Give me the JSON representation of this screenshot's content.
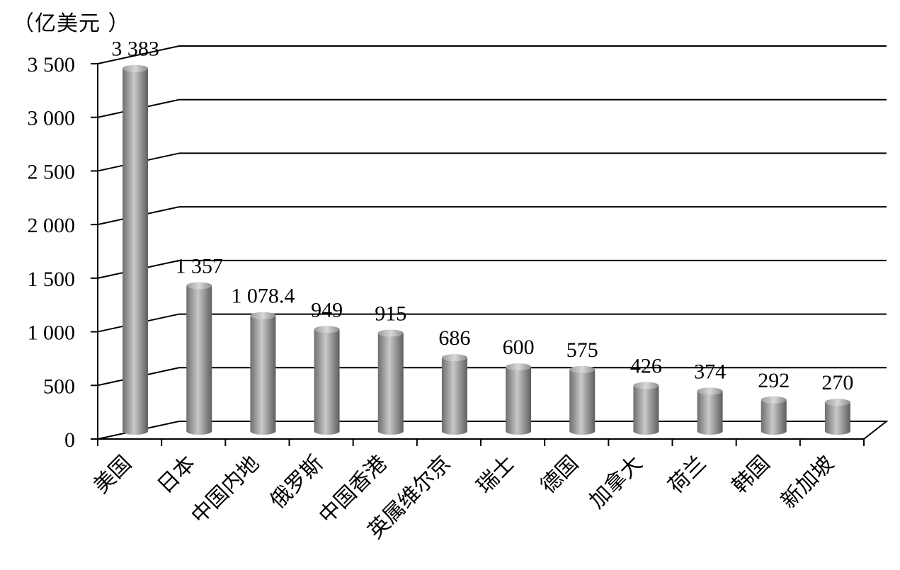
{
  "chart_data": {
    "type": "bar",
    "unit_label": "（亿美元 ）",
    "categories": [
      "美国",
      "日本",
      "中国内地",
      "俄罗斯",
      "中国香港",
      "英属维尔京",
      "瑞士",
      "德国",
      "加拿大",
      "荷兰",
      "韩国",
      "新加坡"
    ],
    "values": [
      3383,
      1357,
      1078.4,
      949,
      915,
      686,
      600,
      575,
      426,
      374,
      292,
      270
    ],
    "value_labels": [
      "3 383",
      "1 357",
      "1 078.4",
      "949",
      "915",
      "686",
      "600",
      "575",
      "426",
      "374",
      "292",
      "270"
    ],
    "y_ticks": [
      0,
      500,
      1000,
      1500,
      2000,
      2500,
      3000,
      3500
    ],
    "y_tick_labels": [
      "0",
      "500",
      "1 000",
      "1 500",
      "2 000",
      "2 500",
      "3 000",
      "3 500"
    ],
    "ylim": [
      0,
      3500
    ],
    "grid": true,
    "bar_color": "#8c8c8c",
    "style": "3d-cylinder"
  }
}
